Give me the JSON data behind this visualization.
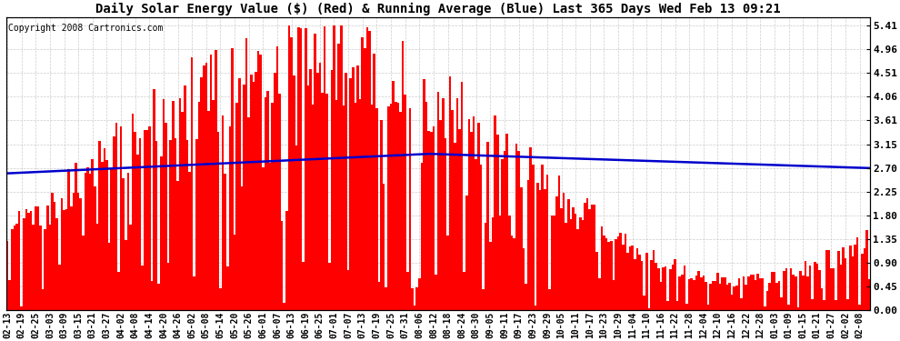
{
  "title": "Daily Solar Energy Value ($) (Red) & Running Average (Blue) Last 365 Days Wed Feb 13 09:21",
  "copyright_text": "Copyright 2008 Cartronics.com",
  "bar_color": "#FF0000",
  "line_color": "#0000CC",
  "background_color": "#FFFFFF",
  "grid_color": "#CCCCCC",
  "yticks": [
    0.0,
    0.45,
    0.9,
    1.35,
    1.8,
    2.25,
    2.7,
    3.15,
    3.61,
    4.06,
    4.51,
    4.96,
    5.41
  ],
  "ylim": [
    0.0,
    5.55
  ],
  "x_labels": [
    "02-13",
    "02-19",
    "02-25",
    "03-03",
    "03-09",
    "03-15",
    "03-21",
    "03-27",
    "04-02",
    "04-08",
    "04-14",
    "04-20",
    "04-26",
    "05-02",
    "05-08",
    "05-14",
    "05-20",
    "05-26",
    "06-01",
    "06-07",
    "06-13",
    "06-19",
    "06-25",
    "07-01",
    "07-07",
    "07-13",
    "07-19",
    "07-25",
    "07-31",
    "08-06",
    "08-12",
    "08-18",
    "08-24",
    "08-30",
    "09-05",
    "09-11",
    "09-17",
    "09-23",
    "09-29",
    "10-05",
    "10-11",
    "10-17",
    "10-23",
    "10-29",
    "11-04",
    "11-10",
    "11-16",
    "11-22",
    "11-28",
    "12-04",
    "12-10",
    "12-16",
    "12-22",
    "12-28",
    "01-03",
    "01-09",
    "01-15",
    "01-21",
    "01-27",
    "02-02",
    "02-08"
  ],
  "title_fontsize": 10,
  "copyright_fontsize": 7,
  "tick_fontsize": 7,
  "ytick_fontsize": 8
}
